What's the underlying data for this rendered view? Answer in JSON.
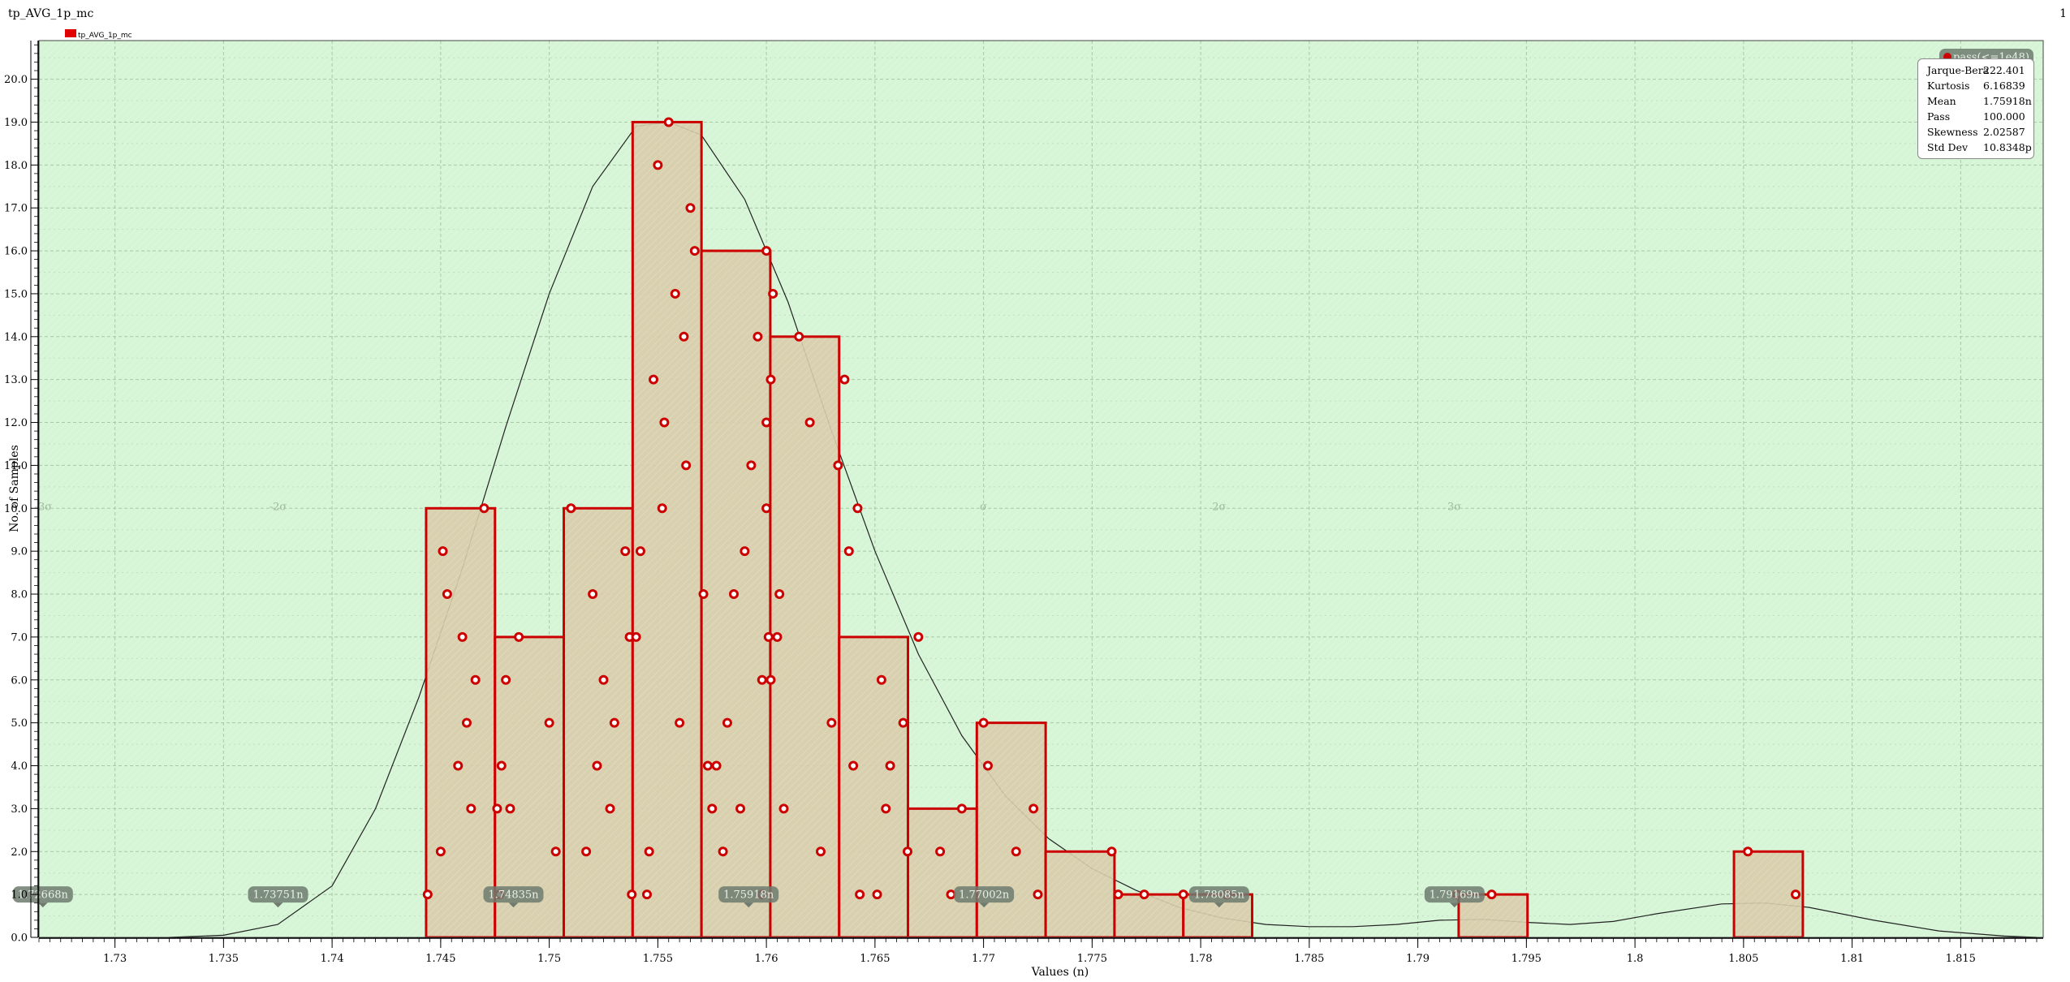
{
  "window": {
    "title": "tp_AVG_1p_mc",
    "page_number": "1"
  },
  "colors": {
    "plot_bg": "#d6f5d6",
    "bar_fill": "#d8ccaa",
    "bar_edge": "#cc0000",
    "point": "#cc0000",
    "curve": "#222222",
    "marker_bg": "#6e7b6e"
  },
  "stats": [
    {
      "key": "Jarque-Bera",
      "value": "222.401"
    },
    {
      "key": "Kurtosis",
      "value": "6.16839"
    },
    {
      "key": "Mean",
      "value": "1.75918n"
    },
    {
      "key": "Pass",
      "value": "100.000"
    },
    {
      "key": "Skewness",
      "value": "2.02587"
    },
    {
      "key": "Std Dev",
      "value": "10.8348p"
    }
  ],
  "sigma_labels": [
    {
      "text": "-3σ",
      "x": 1.7267
    },
    {
      "text": "-2σ",
      "x": 1.73751
    },
    {
      "text": "σ",
      "x": 1.77
    },
    {
      "text": "2σ",
      "x": 1.78085
    },
    {
      "text": "3σ",
      "x": 1.79168
    }
  ],
  "markers": [
    {
      "text": "1.72668n",
      "x": 1.72668
    },
    {
      "text": "1.73751n",
      "x": 1.73751
    },
    {
      "text": "1.74835n",
      "x": 1.74835
    },
    {
      "text": "1.75918n",
      "x": 1.75918
    },
    {
      "text": "1.77002n",
      "x": 1.77002
    },
    {
      "text": "1.78085n",
      "x": 1.78085
    },
    {
      "text": "1.79169n",
      "x": 1.79169
    }
  ],
  "top_marker": "pass(<=1e48)",
  "chart_data": {
    "type": "bar",
    "title": "tp_AVG_1p_mc",
    "xlabel": "Values (n)",
    "ylabel": "No. of Samples",
    "legend": [
      {
        "name": "tp_AVG_1p_mc",
        "color": "#e00000"
      }
    ],
    "legend_position": "top-left",
    "grid": true,
    "xlim": [
      1.7265,
      1.8188
    ],
    "ylim": [
      0,
      20.9
    ],
    "x_ticks": [
      1.73,
      1.735,
      1.74,
      1.745,
      1.75,
      1.755,
      1.76,
      1.765,
      1.77,
      1.775,
      1.78,
      1.785,
      1.79,
      1.795,
      1.8,
      1.805,
      1.81,
      1.815
    ],
    "x_tick_labels": [
      "1.73",
      "1.735",
      "1.74",
      "1.745",
      "1.75",
      "1.755",
      "1.76",
      "1.765",
      "1.77",
      "1.775",
      "1.78",
      "1.785",
      "1.79",
      "1.795",
      "1.8",
      "1.805",
      "1.81",
      "1.815"
    ],
    "y_ticks": [
      0,
      1,
      2,
      3,
      4,
      5,
      6,
      7,
      8,
      9,
      10,
      11,
      12,
      13,
      14,
      15,
      16,
      17,
      18,
      19,
      20
    ],
    "y_tick_labels": [
      "0.0",
      "1.0",
      "2.0",
      "3.0",
      "4.0",
      "5.0",
      "6.0",
      "7.0",
      "8.0",
      "9.0",
      "10.0",
      "11.0",
      "12.0",
      "13.0",
      "14.0",
      "15.0",
      "16.0",
      "17.0",
      "18.0",
      "19.0",
      "20.0"
    ],
    "bins": [
      {
        "start": 1.74433,
        "end": 1.7475,
        "count": 10
      },
      {
        "start": 1.7475,
        "end": 1.75067,
        "count": 7
      },
      {
        "start": 1.75067,
        "end": 1.75384,
        "count": 10
      },
      {
        "start": 1.75384,
        "end": 1.75701,
        "count": 19
      },
      {
        "start": 1.75701,
        "end": 1.76018,
        "count": 16
      },
      {
        "start": 1.76018,
        "end": 1.76335,
        "count": 14
      },
      {
        "start": 1.76335,
        "end": 1.76652,
        "count": 7
      },
      {
        "start": 1.76652,
        "end": 1.76969,
        "count": 3
      },
      {
        "start": 1.76969,
        "end": 1.77286,
        "count": 5
      },
      {
        "start": 1.77286,
        "end": 1.77603,
        "count": 2
      },
      {
        "start": 1.77603,
        "end": 1.7792,
        "count": 1
      },
      {
        "start": 1.7792,
        "end": 1.78237,
        "count": 1
      },
      {
        "start": 1.78237,
        "end": 1.78554,
        "count": 0
      },
      {
        "start": 1.78554,
        "end": 1.78871,
        "count": 0
      },
      {
        "start": 1.78871,
        "end": 1.79188,
        "count": 0
      },
      {
        "start": 1.79188,
        "end": 1.79505,
        "count": 1
      },
      {
        "start": 1.79505,
        "end": 1.79822,
        "count": 0
      },
      {
        "start": 1.79822,
        "end": 1.80139,
        "count": 0
      },
      {
        "start": 1.80139,
        "end": 1.80456,
        "count": 0
      },
      {
        "start": 1.80456,
        "end": 1.80773,
        "count": 2
      }
    ],
    "points": [
      [
        1.7444,
        1
      ],
      [
        1.745,
        2
      ],
      [
        1.7451,
        9
      ],
      [
        1.7453,
        8
      ],
      [
        1.7458,
        4
      ],
      [
        1.746,
        7
      ],
      [
        1.7462,
        5
      ],
      [
        1.747,
        10
      ],
      [
        1.7464,
        3
      ],
      [
        1.7466,
        6
      ],
      [
        1.7477,
        1
      ],
      [
        1.7476,
        3
      ],
      [
        1.7478,
        4
      ],
      [
        1.748,
        6
      ],
      [
        1.7482,
        3
      ],
      [
        1.7486,
        7
      ],
      [
        1.75,
        5
      ],
      [
        1.7503,
        2
      ],
      [
        1.751,
        10
      ],
      [
        1.7517,
        2
      ],
      [
        1.752,
        8
      ],
      [
        1.7522,
        4
      ],
      [
        1.7525,
        6
      ],
      [
        1.7528,
        3
      ],
      [
        1.753,
        5
      ],
      [
        1.7535,
        9
      ],
      [
        1.7537,
        7
      ],
      [
        1.7538,
        1
      ],
      [
        1.754,
        7
      ],
      [
        1.7542,
        9
      ],
      [
        1.7545,
        1
      ],
      [
        1.7546,
        2
      ],
      [
        1.7548,
        13
      ],
      [
        1.755,
        18
      ],
      [
        1.7552,
        10
      ],
      [
        1.7553,
        12
      ],
      [
        1.7555,
        19
      ],
      [
        1.7558,
        15
      ],
      [
        1.756,
        5
      ],
      [
        1.7562,
        14
      ],
      [
        1.7563,
        11
      ],
      [
        1.7565,
        17
      ],
      [
        1.7567,
        16
      ],
      [
        1.7571,
        8
      ],
      [
        1.7573,
        4
      ],
      [
        1.7575,
        3
      ],
      [
        1.7577,
        4
      ],
      [
        1.758,
        2
      ],
      [
        1.7582,
        5
      ],
      [
        1.7585,
        8
      ],
      [
        1.7588,
        3
      ],
      [
        1.759,
        9
      ],
      [
        1.7593,
        11
      ],
      [
        1.7596,
        14
      ],
      [
        1.7598,
        1
      ],
      [
        1.76,
        12
      ],
      [
        1.7602,
        13
      ],
      [
        1.7598,
        6
      ],
      [
        1.76,
        10
      ],
      [
        1.76,
        16
      ],
      [
        1.7601,
        7
      ],
      [
        1.7602,
        6
      ],
      [
        1.7603,
        15
      ],
      [
        1.7605,
        7
      ],
      [
        1.7606,
        8
      ],
      [
        1.7608,
        3
      ],
      [
        1.7615,
        14
      ],
      [
        1.762,
        12
      ],
      [
        1.7625,
        2
      ],
      [
        1.763,
        5
      ],
      [
        1.7633,
        11
      ],
      [
        1.7636,
        13
      ],
      [
        1.7638,
        9
      ],
      [
        1.764,
        4
      ],
      [
        1.7642,
        10
      ],
      [
        1.7643,
        1
      ],
      [
        1.7651,
        1
      ],
      [
        1.7653,
        6
      ],
      [
        1.7655,
        3
      ],
      [
        1.7657,
        4
      ],
      [
        1.7663,
        5
      ],
      [
        1.7665,
        2
      ],
      [
        1.767,
        7
      ],
      [
        1.768,
        2
      ],
      [
        1.7685,
        1
      ],
      [
        1.769,
        3
      ],
      [
        1.77,
        5
      ],
      [
        1.7702,
        4
      ],
      [
        1.7715,
        2
      ],
      [
        1.7723,
        3
      ],
      [
        1.7725,
        1
      ],
      [
        1.7759,
        2
      ],
      [
        1.7762,
        1
      ],
      [
        1.7774,
        1
      ],
      [
        1.7812,
        1
      ],
      [
        1.7792,
        1
      ],
      [
        1.7934,
        1
      ],
      [
        1.7918,
        1
      ],
      [
        1.8052,
        2
      ],
      [
        1.8074,
        1
      ]
    ],
    "curve": [
      [
        1.7325,
        0
      ],
      [
        1.735,
        0.05
      ],
      [
        1.7375,
        0.3
      ],
      [
        1.74,
        1.2
      ],
      [
        1.742,
        3.0
      ],
      [
        1.744,
        5.6
      ],
      [
        1.746,
        8.6
      ],
      [
        1.748,
        11.9
      ],
      [
        1.75,
        15.0
      ],
      [
        1.752,
        17.5
      ],
      [
        1.754,
        18.9
      ],
      [
        1.7555,
        19.0
      ],
      [
        1.757,
        18.7
      ],
      [
        1.759,
        17.2
      ],
      [
        1.761,
        14.8
      ],
      [
        1.763,
        11.8
      ],
      [
        1.765,
        9.0
      ],
      [
        1.767,
        6.6
      ],
      [
        1.769,
        4.7
      ],
      [
        1.771,
        3.3
      ],
      [
        1.773,
        2.3
      ],
      [
        1.775,
        1.6
      ],
      [
        1.777,
        1.1
      ],
      [
        1.779,
        0.7
      ],
      [
        1.781,
        0.45
      ],
      [
        1.783,
        0.3
      ],
      [
        1.785,
        0.25
      ],
      [
        1.787,
        0.25
      ],
      [
        1.789,
        0.3
      ],
      [
        1.791,
        0.4
      ],
      [
        1.793,
        0.42
      ],
      [
        1.795,
        0.35
      ],
      [
        1.797,
        0.3
      ],
      [
        1.799,
        0.37
      ],
      [
        1.801,
        0.55
      ],
      [
        1.804,
        0.78
      ],
      [
        1.806,
        0.8
      ],
      [
        1.808,
        0.7
      ],
      [
        1.811,
        0.4
      ],
      [
        1.814,
        0.15
      ],
      [
        1.817,
        0.03
      ],
      [
        1.8185,
        0.0
      ]
    ]
  }
}
